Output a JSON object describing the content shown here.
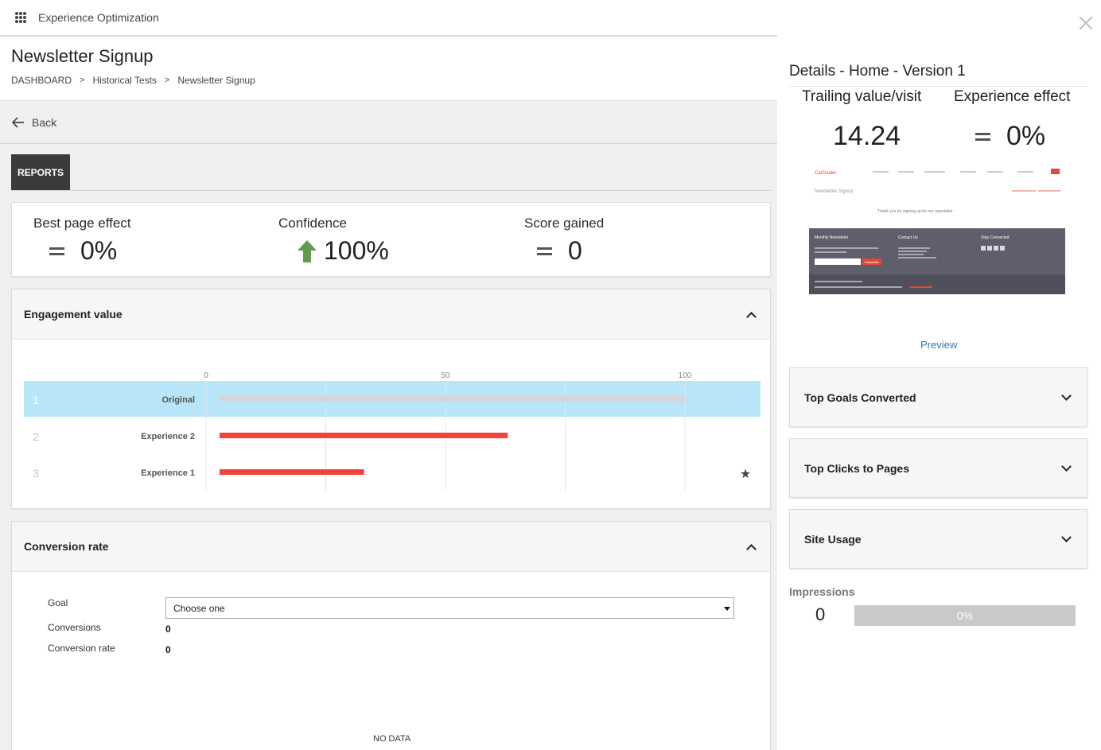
{
  "app": {
    "name": "Experience Optimization"
  },
  "page": {
    "title": "Newsletter Signup",
    "breadcrumb": [
      "DASHBOARD",
      "Historical Tests",
      "Newsletter Signup"
    ],
    "back_label": "Back",
    "tab": "REPORTS"
  },
  "kpis": [
    {
      "label": "Best page effect",
      "value": "0%",
      "indicator": "equal"
    },
    {
      "label": "Confidence",
      "value": "100%",
      "indicator": "up-arrow"
    },
    {
      "label": "Score gained",
      "value": "0",
      "indicator": "equal"
    }
  ],
  "engagement": {
    "title": "Engagement value",
    "chart_data": {
      "type": "bar",
      "orientation": "horizontal",
      "x_ticks": [
        0,
        50,
        100
      ],
      "xlim": [
        0,
        115
      ],
      "rows": [
        {
          "rank": "1",
          "name": "Original",
          "value": 100,
          "color": "#d6d6d6",
          "highlight": true
        },
        {
          "rank": "2",
          "name": "Experience 2",
          "value": 63,
          "color": "#f0433a",
          "highlight": false
        },
        {
          "rank": "3",
          "name": "Experience 1",
          "value": 33,
          "color": "#f0433a",
          "highlight": false,
          "starred": true
        }
      ],
      "grid": true
    }
  },
  "conversion": {
    "title": "Conversion rate",
    "goal_label": "Goal",
    "goal_value": "Choose one",
    "conversions_label": "Conversions",
    "conversions_value": "0",
    "rate_label": "Conversion rate",
    "rate_value": "0",
    "no_data": "NO DATA"
  },
  "details": {
    "title": "Details - Home - Version 1",
    "trailing_label": "Trailing value/visit",
    "trailing_value": "14.24",
    "effect_label": "Experience effect",
    "effect_value": "0%",
    "thumbnail": {
      "brand": "CarDealer",
      "heading": "Newsletter Signup",
      "message": "Thank you for signing up for our newsletter",
      "footer_cols": [
        "Monthly Newsletter",
        "Contact Us",
        "Stay Connected"
      ],
      "subscribe": "Subscribe"
    },
    "preview_label": "Preview",
    "accordions": [
      "Top Goals Converted",
      "Top Clicks to Pages",
      "Site Usage"
    ],
    "impressions_label": "Impressions",
    "impressions_value": "0",
    "impressions_pct": "0%"
  },
  "colors": {
    "highlight": "#b8e6f8",
    "bar_red": "#f0433a",
    "up_arrow": "#5f9c4d",
    "link": "#2a7ab8"
  }
}
